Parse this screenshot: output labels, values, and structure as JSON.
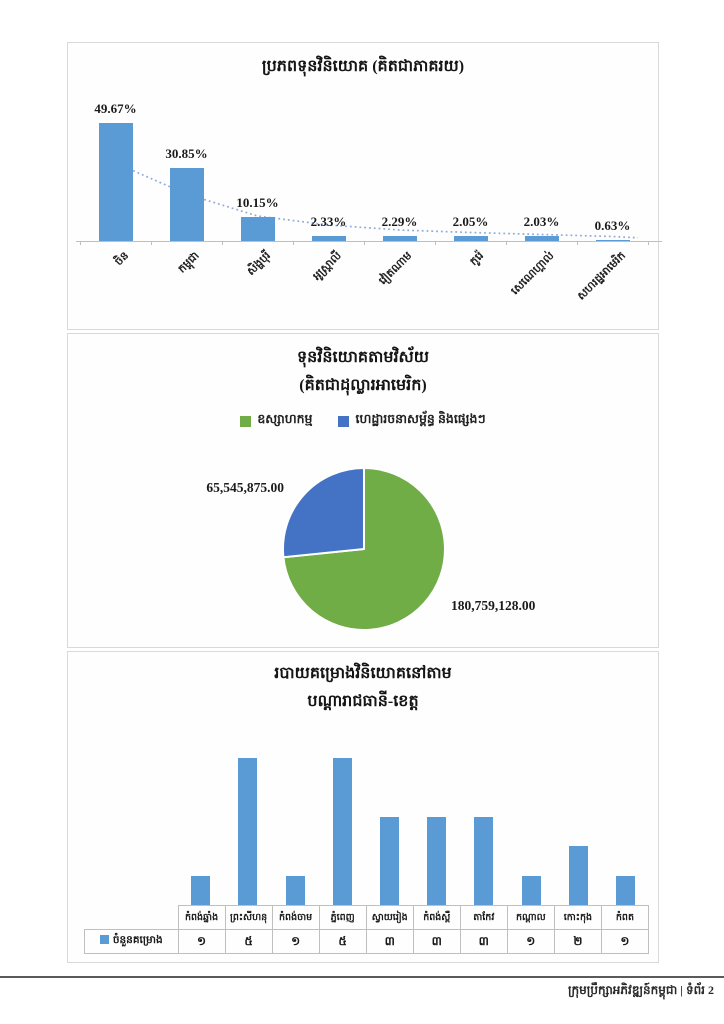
{
  "footer": {
    "text": "ក្រុមប្រឹក្សាអភិវឌ្ឍន៍កម្ពុជា | ទំព័រ 2"
  },
  "colors": {
    "bar_blue": "#5b9bd5",
    "trend_blue": "#8faadc",
    "pie_green": "#70ad47",
    "pie_blue": "#4472c4",
    "axis_gray": "#bfbfbf",
    "panel_border": "#d9d9d9"
  },
  "chart_data": [
    {
      "type": "bar",
      "title": "ប្រភពទុនវិនិយោគ (គិតជាភាគរយ)",
      "categories": [
        "ចិន",
        "កម្ពុជា",
        "សិង្ហបុរី",
        "អូស្ត្រាលី",
        "វៀតណាម",
        "កូរ៉េ",
        "សេណេហ្គាល់",
        "សហរដ្ឋអាមេរិក"
      ],
      "values": [
        49.67,
        30.85,
        10.15,
        2.33,
        2.29,
        2.05,
        2.03,
        0.63
      ],
      "value_labels": [
        "49.67%",
        "30.85%",
        "10.15%",
        "2.33%",
        "2.29%",
        "2.05%",
        "2.03%",
        "0.63%"
      ],
      "ylim": [
        0,
        55
      ],
      "trendline": true,
      "legend": "none",
      "grid": false
    },
    {
      "type": "pie",
      "title_line1": "ទុនវិនិយោគតាមវិស័យ",
      "title_line2": "(គិតជាដុល្លារអាមេរិក)",
      "legend_position": "top",
      "legend": [
        {
          "label": "ឧស្សាហកម្ម",
          "color": "#70ad47"
        },
        {
          "label": "ហេដ្ឋារចនាសម្ព័ន្ធ និងផ្សេងៗ",
          "color": "#4472c4"
        }
      ],
      "slices": [
        {
          "name": "ឧស្សាហកម្ម",
          "value": 180759128.0,
          "label": "180,759,128.00",
          "color": "#70ad47"
        },
        {
          "name": "ហេដ្ឋារចនាសម្ព័ន្ធ និងផ្សេងៗ",
          "value": 65545875.0,
          "label": "65,545,875.00",
          "color": "#4472c4"
        }
      ]
    },
    {
      "type": "bar",
      "title_line1": "របាយគម្រោងវិនិយោគនៅតាម",
      "title_line2": "បណ្តារាជធានី-ខេត្ត",
      "series_label": "ចំនួនគម្រោង",
      "categories": [
        "កំពង់ឆ្នាំង",
        "ព្រះសីហនុ",
        "កំពង់ចាម",
        "ភ្នំពេញ",
        "ស្វាយរៀង",
        "កំពង់ស្ពឺ",
        "តាកែវ",
        "កណ្តាល",
        "កោះកុង",
        "កំពត"
      ],
      "values": [
        1,
        5,
        1,
        5,
        3,
        3,
        3,
        1,
        2,
        1
      ],
      "value_labels": [
        "១",
        "៥",
        "១",
        "៥",
        "៣",
        "៣",
        "៣",
        "១",
        "២",
        "១"
      ],
      "ylim": [
        0,
        6
      ],
      "grid": false,
      "data_table": true
    }
  ]
}
